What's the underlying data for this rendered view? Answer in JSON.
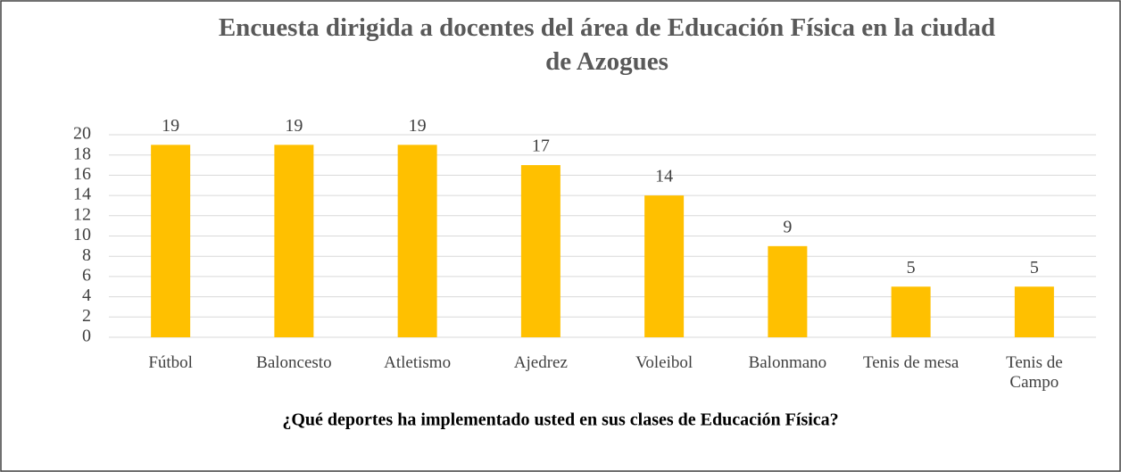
{
  "chart_data": {
    "type": "bar",
    "title": "Encuesta dirigida a docentes del área de Educación Física en la ciudad de Azogues",
    "x_label": "¿Qué deportes ha implementado usted en sus clases de Educación Física?",
    "categories": [
      "Fútbol",
      "Baloncesto",
      "Atletismo",
      "Ajedrez",
      "Voleibol",
      "Balonmano",
      "Tenis de mesa",
      "Tenis de Campo"
    ],
    "values": [
      19,
      19,
      19,
      17,
      14,
      9,
      5,
      5
    ],
    "color": "#ffc000",
    "ylim": [
      0,
      20
    ],
    "yticks": [
      0,
      2,
      4,
      6,
      8,
      10,
      12,
      14,
      16,
      18,
      20
    ],
    "grid": true
  }
}
